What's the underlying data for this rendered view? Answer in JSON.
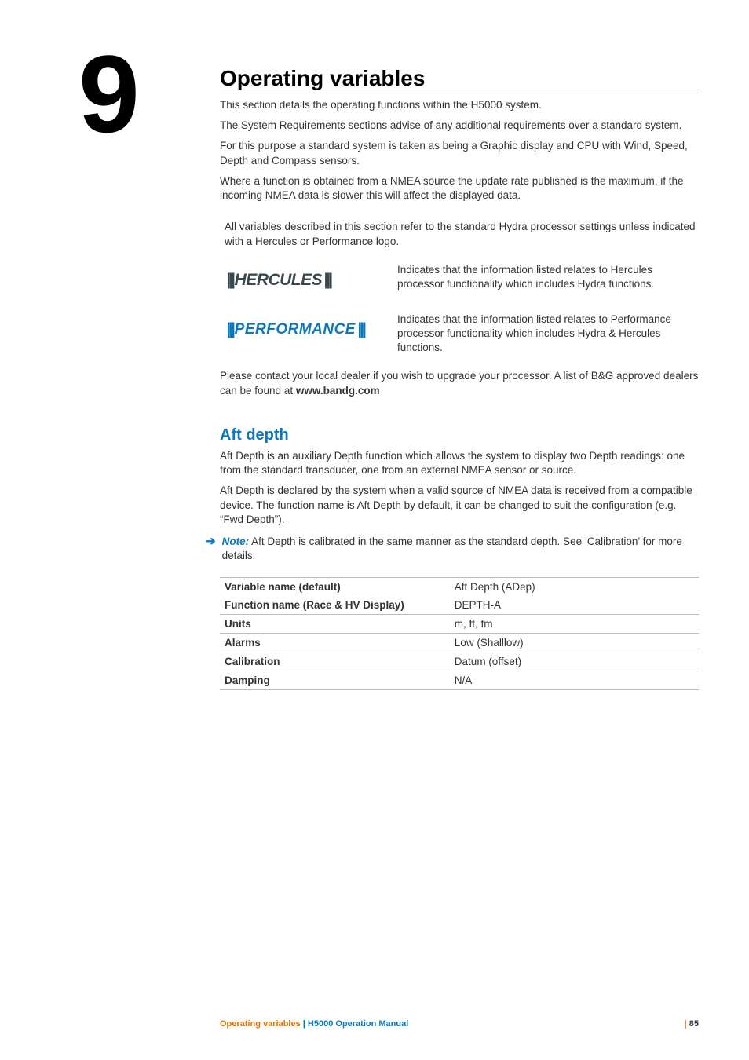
{
  "chapter_number": "9",
  "title": "Operating variables",
  "intro": [
    "This section details the operating functions within the H5000 system.",
    "The System Requirements sections advise of any additional requirements over a standard system.",
    "For this purpose a standard system is taken as being a Graphic display and CPU with Wind, Speed, Depth and Compass sensors.",
    "Where a function is obtained from a NMEA source the update rate published is the maximum, if the incoming NMEA data is slower this will affect the displayed data."
  ],
  "std_note": "All variables described in this  section refer to the standard Hydra processor settings unless indicated with a  Hercules or Performance logo.",
  "logos": {
    "hercules_text": "HERCULES",
    "hercules_desc": "Indicates that the information listed relates to Hercules processor functionality which includes Hydra functions.",
    "performance_text": "PERFORMANCE",
    "performance_desc": "Indicates that the information listed relates to Performance processor functionality which includes Hydra & Hercules functions."
  },
  "dealer_text_pre": "Please contact your local dealer if you wish to upgrade your processor.  A list of B&G approved dealers can be found at ",
  "dealer_link": "www.bandg.com",
  "section": {
    "heading": "Aft depth",
    "paras": [
      "Aft Depth is an auxiliary Depth function which allows the system to display two Depth readings: one from the standard transducer, one from an external NMEA sensor or source.",
      "Aft Depth is declared by the system when a valid source of NMEA data is received from a compatible device.  The function name is Aft Depth by default, it can be changed to suit the configuration (e.g. “Fwd Depth”)."
    ],
    "note_label": "Note:",
    "note_text": " Aft Depth is calibrated in the same manner as the standard depth. See ‘Calibration’ for more details."
  },
  "table": {
    "rows": [
      {
        "label": "Variable name (default)",
        "value": "Aft Depth (ADep)",
        "border": false
      },
      {
        "label": "Function name  (Race & HV Display)",
        "value": "DEPTH-A",
        "border": true
      },
      {
        "label": "Units",
        "value": "m, ft, fm",
        "border": true
      },
      {
        "label": "Alarms",
        "value": "Low (Shalllow)",
        "border": true
      },
      {
        "label": "Calibration",
        "value": "Datum (offset)",
        "border": true
      },
      {
        "label": "Damping",
        "value": "N/A",
        "border": true
      }
    ]
  },
  "footer": {
    "section": "Operating variables",
    "sep": " | ",
    "manual": "H5000 Operation Manual",
    "page_sep": "| ",
    "page": "85"
  },
  "colors": {
    "blue": "#0a78bf",
    "orange": "#e57200",
    "hercules": "#39474f"
  }
}
